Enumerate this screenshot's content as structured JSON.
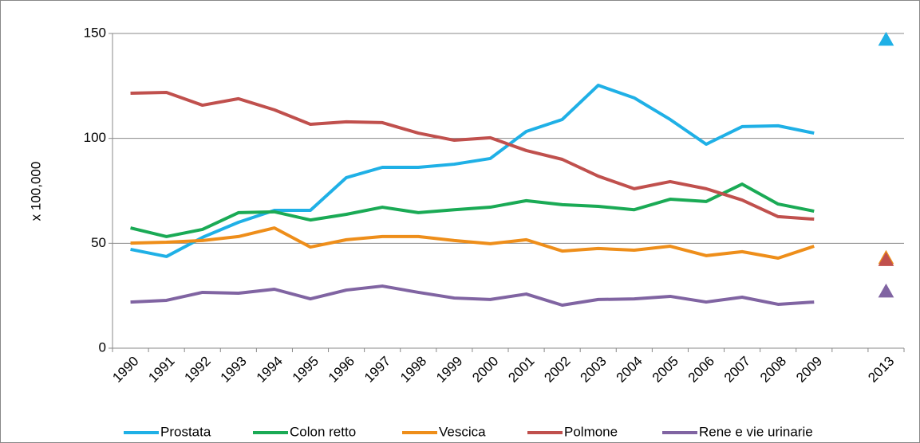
{
  "chart_data": {
    "type": "line",
    "y_label": "x 100,000",
    "categories": [
      "1990",
      "1991",
      "1992",
      "1993",
      "1994",
      "1995",
      "1996",
      "1997",
      "1998",
      "1999",
      "2000",
      "2001",
      "2002",
      "2003",
      "2004",
      "2005",
      "2006",
      "2007",
      "2008",
      "2009",
      null,
      "2013"
    ],
    "ylim": [
      0,
      150
    ],
    "yticks": [
      0,
      50,
      100,
      150
    ],
    "grid": true,
    "legend": "bottom",
    "series": [
      {
        "name": "Prostata",
        "color": "#1fb0e6",
        "values": [
          47.1,
          43.7,
          52.8,
          60,
          65.7,
          65.7,
          81.3,
          86.2,
          86.2,
          87.7,
          90.4,
          103.3,
          109,
          125.3,
          119.3,
          109,
          97.2,
          105.6,
          106,
          102.5,
          null,
          147
        ]
      },
      {
        "name": "Colon retto",
        "color": "#1aaa55",
        "values": [
          57.3,
          53.2,
          56.6,
          64.6,
          65,
          61.1,
          63.8,
          67.2,
          64.6,
          66,
          67.2,
          70.3,
          68.4,
          67.6,
          66,
          71,
          69.9,
          78.2,
          68.7,
          65.3,
          null,
          null
        ]
      },
      {
        "name": "Vescica",
        "color": "#ee8e1a",
        "values": [
          50.1,
          50.5,
          51.3,
          53.2,
          57.3,
          48.2,
          51.7,
          53.2,
          53.2,
          51.3,
          49.8,
          51.7,
          46.3,
          47.5,
          46.7,
          48.6,
          44.1,
          46,
          42.9,
          48.6,
          null,
          43
        ]
      },
      {
        "name": "Polmone",
        "color": "#c0504d",
        "values": [
          121.5,
          121.9,
          115.8,
          118.9,
          113.6,
          106.7,
          107.9,
          107.5,
          102.5,
          99.1,
          100.3,
          94.2,
          90,
          82,
          76,
          79.4,
          76,
          70.6,
          62.7,
          61.5,
          null,
          42
        ]
      },
      {
        "name": "Rene e vie urinarie",
        "color": "#8064a2",
        "values": [
          22,
          22.8,
          26.6,
          26.2,
          28.1,
          23.5,
          27.7,
          29.6,
          26.6,
          23.9,
          23.2,
          25.8,
          20.5,
          23.2,
          23.5,
          24.7,
          22,
          24.3,
          20.9,
          22,
          null,
          27
        ]
      }
    ]
  }
}
